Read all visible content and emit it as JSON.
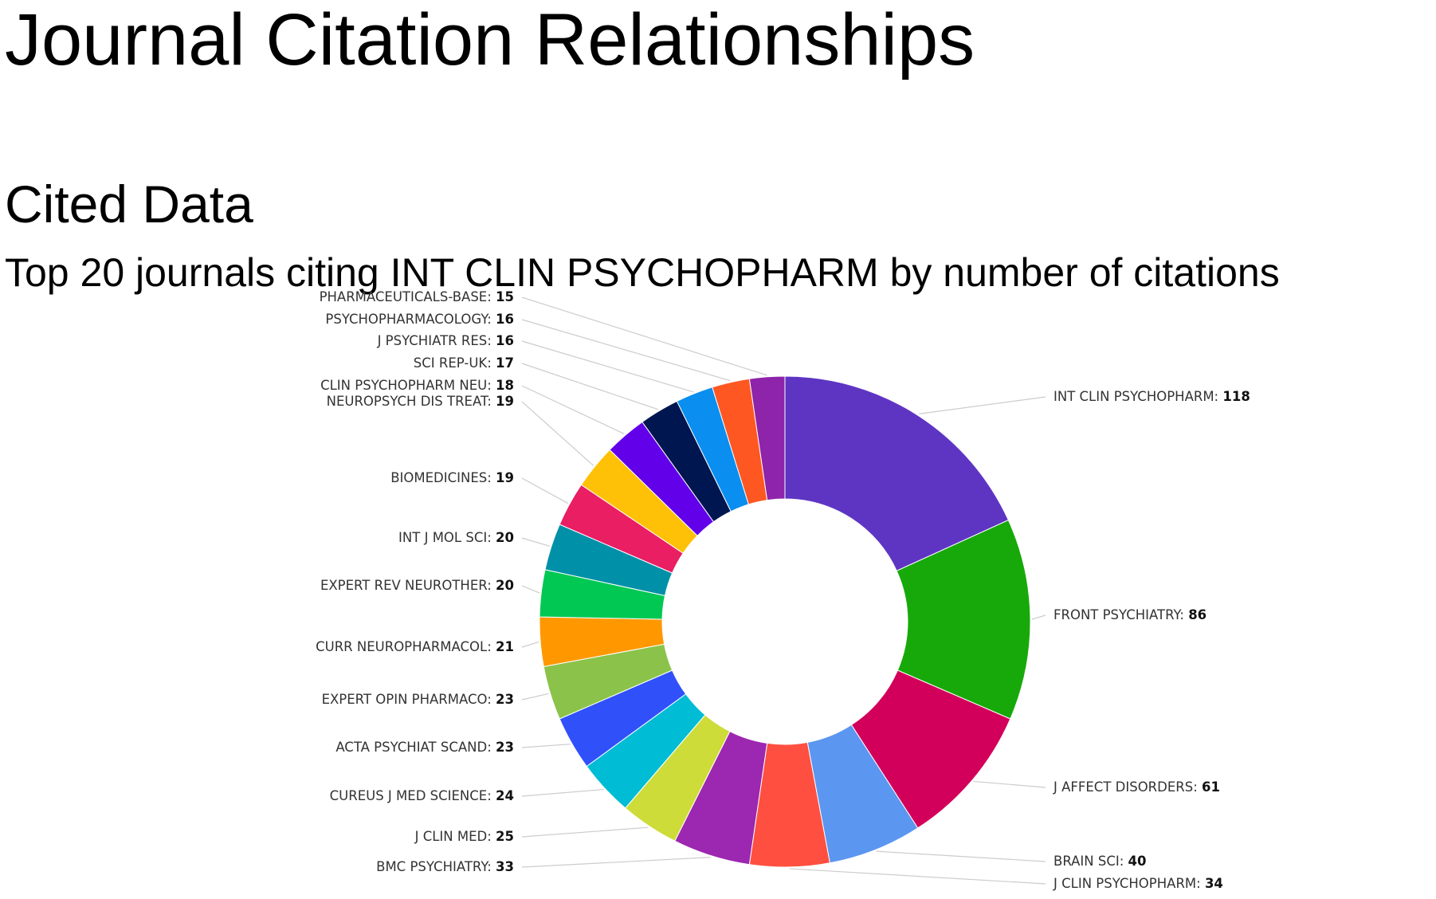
{
  "header": {
    "title": "Journal Citation Relationships"
  },
  "section": {
    "title": "Cited Data",
    "subtitle": "Top 20 journals citing INT CLIN PSYCHOPHARM by number of citations"
  },
  "chart_data": {
    "type": "pie",
    "style": "donut",
    "title": "Top 20 journals citing INT CLIN PSYCHOPHARM by number of citations",
    "slices": [
      {
        "label": "INT CLIN PSYCHOPHARM",
        "value": 118,
        "color": "#5e35c3"
      },
      {
        "label": "FRONT PSYCHIATRY",
        "value": 86,
        "color": "#17a90a"
      },
      {
        "label": "J AFFECT DISORDERS",
        "value": 61,
        "color": "#d2005a"
      },
      {
        "label": "BRAIN SCI",
        "value": 40,
        "color": "#5b96f0"
      },
      {
        "label": "J CLIN PSYCHOPHARM",
        "value": 34,
        "color": "#ff4f40"
      },
      {
        "label": "BMC PSYCHIATRY",
        "value": 33,
        "color": "#9c27b0"
      },
      {
        "label": "J CLIN MED",
        "value": 25,
        "color": "#cddc39"
      },
      {
        "label": "CUREUS J MED SCIENCE",
        "value": 24,
        "color": "#00bcd4"
      },
      {
        "label": "ACTA PSYCHIAT SCAND",
        "value": 23,
        "color": "#3050fa"
      },
      {
        "label": "EXPERT OPIN PHARMACO",
        "value": 23,
        "color": "#8bc34a"
      },
      {
        "label": "CURR NEUROPHARMACOL",
        "value": 21,
        "color": "#ff9800"
      },
      {
        "label": "EXPERT REV NEUROTHER",
        "value": 20,
        "color": "#00c853"
      },
      {
        "label": "INT J MOL SCI",
        "value": 20,
        "color": "#0090a8"
      },
      {
        "label": "BIOMEDICINES",
        "value": 19,
        "color": "#e91e63"
      },
      {
        "label": "NEUROPSYCH DIS TREAT",
        "value": 19,
        "color": "#ffc107"
      },
      {
        "label": "CLIN PSYCHOPHARM NEU",
        "value": 18,
        "color": "#6200ea"
      },
      {
        "label": "SCI REP-UK",
        "value": 17,
        "color": "#001650"
      },
      {
        "label": "J PSYCHIATR RES",
        "value": 16,
        "color": "#0a8ef0"
      },
      {
        "label": "PSYCHOPHARMACOLOGY",
        "value": 16,
        "color": "#ff5722"
      },
      {
        "label": "PHARMACEUTICALS-BASE",
        "value": 15,
        "color": "#8e24aa"
      }
    ],
    "legend": "none",
    "data_labels": "outside with leader lines"
  }
}
